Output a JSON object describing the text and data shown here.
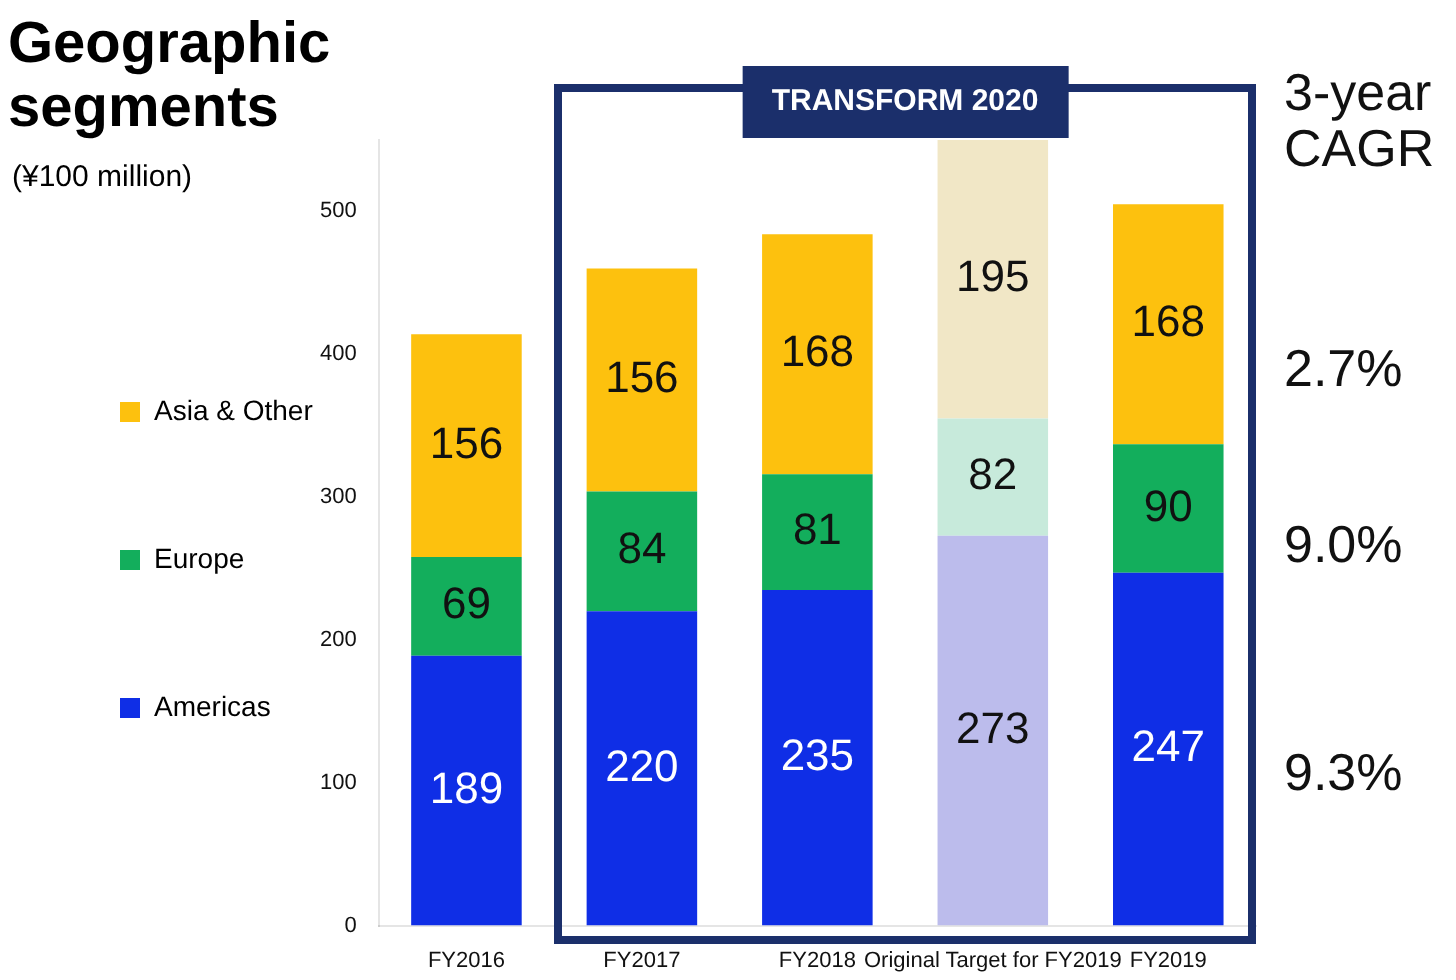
{
  "chart_data": {
    "type": "bar",
    "title": "Geographic segments",
    "ylabel": "(¥100 million)",
    "categories": [
      "FY2016",
      "FY2017",
      "FY2018",
      "Original Target for FY2019",
      "FY2019"
    ],
    "stacked": true,
    "series": [
      {
        "name": "Americas",
        "color": "#0f2ee6",
        "colors": [
          "#0f2ee6",
          "#0f2ee6",
          "#0f2ee6",
          "#bcbcec",
          "#0f2ee6"
        ],
        "values": [
          189,
          220,
          235,
          273,
          247
        ]
      },
      {
        "name": "Europe",
        "color": "#13ae5c",
        "colors": [
          "#13ae5c",
          "#13ae5c",
          "#13ae5c",
          "#c7eadb",
          "#13ae5c"
        ],
        "values": [
          69,
          84,
          81,
          82,
          90
        ]
      },
      {
        "name": "Asia & Other",
        "color": "#fdc10e",
        "colors": [
          "#fdc10e",
          "#fdc10e",
          "#fdc10e",
          "#f1e7c6",
          "#fdc10e"
        ],
        "values": [
          156,
          156,
          168,
          195,
          168
        ]
      }
    ],
    "ylim": [
      0,
      550
    ],
    "yticks": [
      0,
      100,
      200,
      300,
      400,
      500
    ],
    "data_labels": true,
    "legend": "left",
    "grid": false,
    "annotations": [
      "3-year CAGR",
      "2.7%",
      "9.0%",
      "9.3%",
      "TRANSFORM 2020"
    ]
  }
}
